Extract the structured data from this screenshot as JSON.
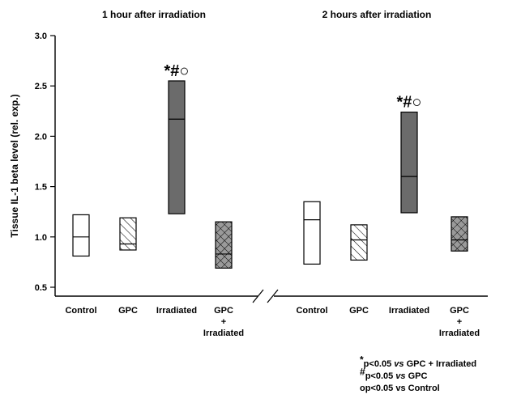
{
  "chart_data": {
    "type": "box",
    "ylabel": "Tissue IL-1 beta level (rel. exp.)",
    "ylim": [
      0.5,
      3.0
    ],
    "yticks": [
      "0.5",
      "1.0",
      "1.5",
      "2.0",
      "2.5",
      "3.0"
    ],
    "panels": [
      {
        "title": "1 hour after irradiation",
        "categories": [
          "Control",
          "GPC",
          "Irradiated",
          "GPC + Irradiated"
        ],
        "boxes": [
          {
            "category": "Control",
            "low": 0.81,
            "median": 1.0,
            "high": 1.22,
            "pattern": "open"
          },
          {
            "category": "GPC",
            "low": 0.87,
            "median": 0.93,
            "high": 1.19,
            "pattern": "hatched"
          },
          {
            "category": "Irradiated",
            "low": 1.23,
            "median": 2.17,
            "high": 2.55,
            "pattern": "gray",
            "annotation": "*#○"
          },
          {
            "category": "GPC + Irradiated",
            "low": 0.69,
            "median": 0.83,
            "high": 1.15,
            "pattern": "crosshatched"
          }
        ]
      },
      {
        "title": "2 hours after irradiation",
        "categories": [
          "Control",
          "GPC",
          "Irradiated",
          "GPC + Irradiated"
        ],
        "boxes": [
          {
            "category": "Control",
            "low": 0.73,
            "median": 1.17,
            "high": 1.35,
            "pattern": "open"
          },
          {
            "category": "GPC",
            "low": 0.77,
            "median": 0.97,
            "high": 1.12,
            "pattern": "hatched"
          },
          {
            "category": "Irradiated",
            "low": 1.24,
            "median": 1.6,
            "high": 2.24,
            "pattern": "gray",
            "annotation": "*#○"
          },
          {
            "category": "GPC + Irradiated",
            "low": 0.86,
            "median": 0.97,
            "high": 1.2,
            "pattern": "crosshatched"
          }
        ]
      }
    ],
    "colors": {
      "gray_fill": "#6b6b6b",
      "pattern_fill": "#9a9a9a",
      "stroke": "#000000"
    }
  },
  "legend": {
    "items": [
      {
        "marker": "*",
        "text_a": "p<0.05 ",
        "text_vs": "vs",
        "text_b": " GPC + Irradiated"
      },
      {
        "marker": "#",
        "text_a": "p<0.05 ",
        "text_vs": "vs",
        "text_b": "  GPC"
      },
      {
        "marker": "",
        "text_a": "op<0.05 vs Control",
        "text_vs": "",
        "text_b": ""
      }
    ]
  }
}
